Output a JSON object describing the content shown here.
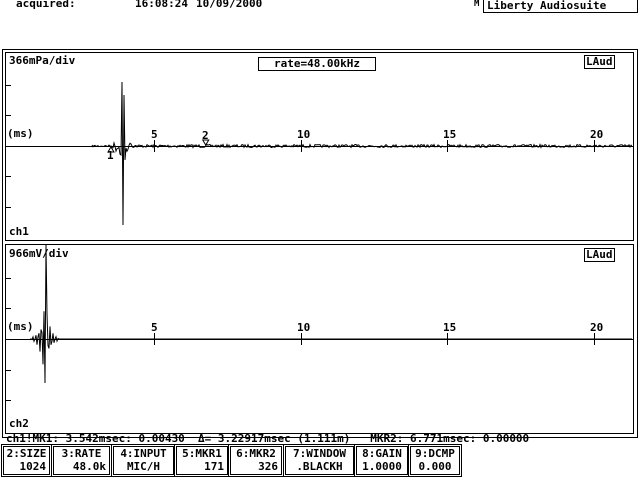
{
  "header": {
    "acquired_label": "acquired:",
    "time": "16:08:24",
    "date": "10/09/2000",
    "marker": "M",
    "app_title": "Liberty Audiosuite"
  },
  "rate_label": "rate=48.00kHz",
  "channels": [
    {
      "scale": "366mPa/div",
      "name": "ch1",
      "badge": "LAud",
      "axis_unit": "(ms)",
      "marker1_label": "1",
      "marker2_label": "2"
    },
    {
      "scale": "966mV/div",
      "name": "ch2",
      "badge": "LAud",
      "axis_unit": "(ms)"
    }
  ],
  "x_ticks": [
    "5",
    "10",
    "15",
    "20"
  ],
  "status_line": "ch1!MK1: 3.542msec: 0.00430  Δ= 3.22917msec (1.111m)   MKR2: 6.771msec: 0.00000",
  "function_keys": [
    {
      "label": "2:SIZE",
      "value": "1024"
    },
    {
      "label": "3:RATE",
      "value": "48.0k"
    },
    {
      "label": "4:INPUT",
      "value": "MIC/H"
    },
    {
      "label": "5:MKR1",
      "value": "171"
    },
    {
      "label": "6:MKR2",
      "value": "326"
    },
    {
      "label": "7:WINDOW",
      "value": ".BLACKH"
    },
    {
      "label": "8:GAIN",
      "value": "1.0000"
    },
    {
      "label": "9:DCMP",
      "value": "0.000"
    }
  ],
  "markers": {
    "mkr1_ms": 3.542,
    "mkr2_ms": 6.771
  }
}
